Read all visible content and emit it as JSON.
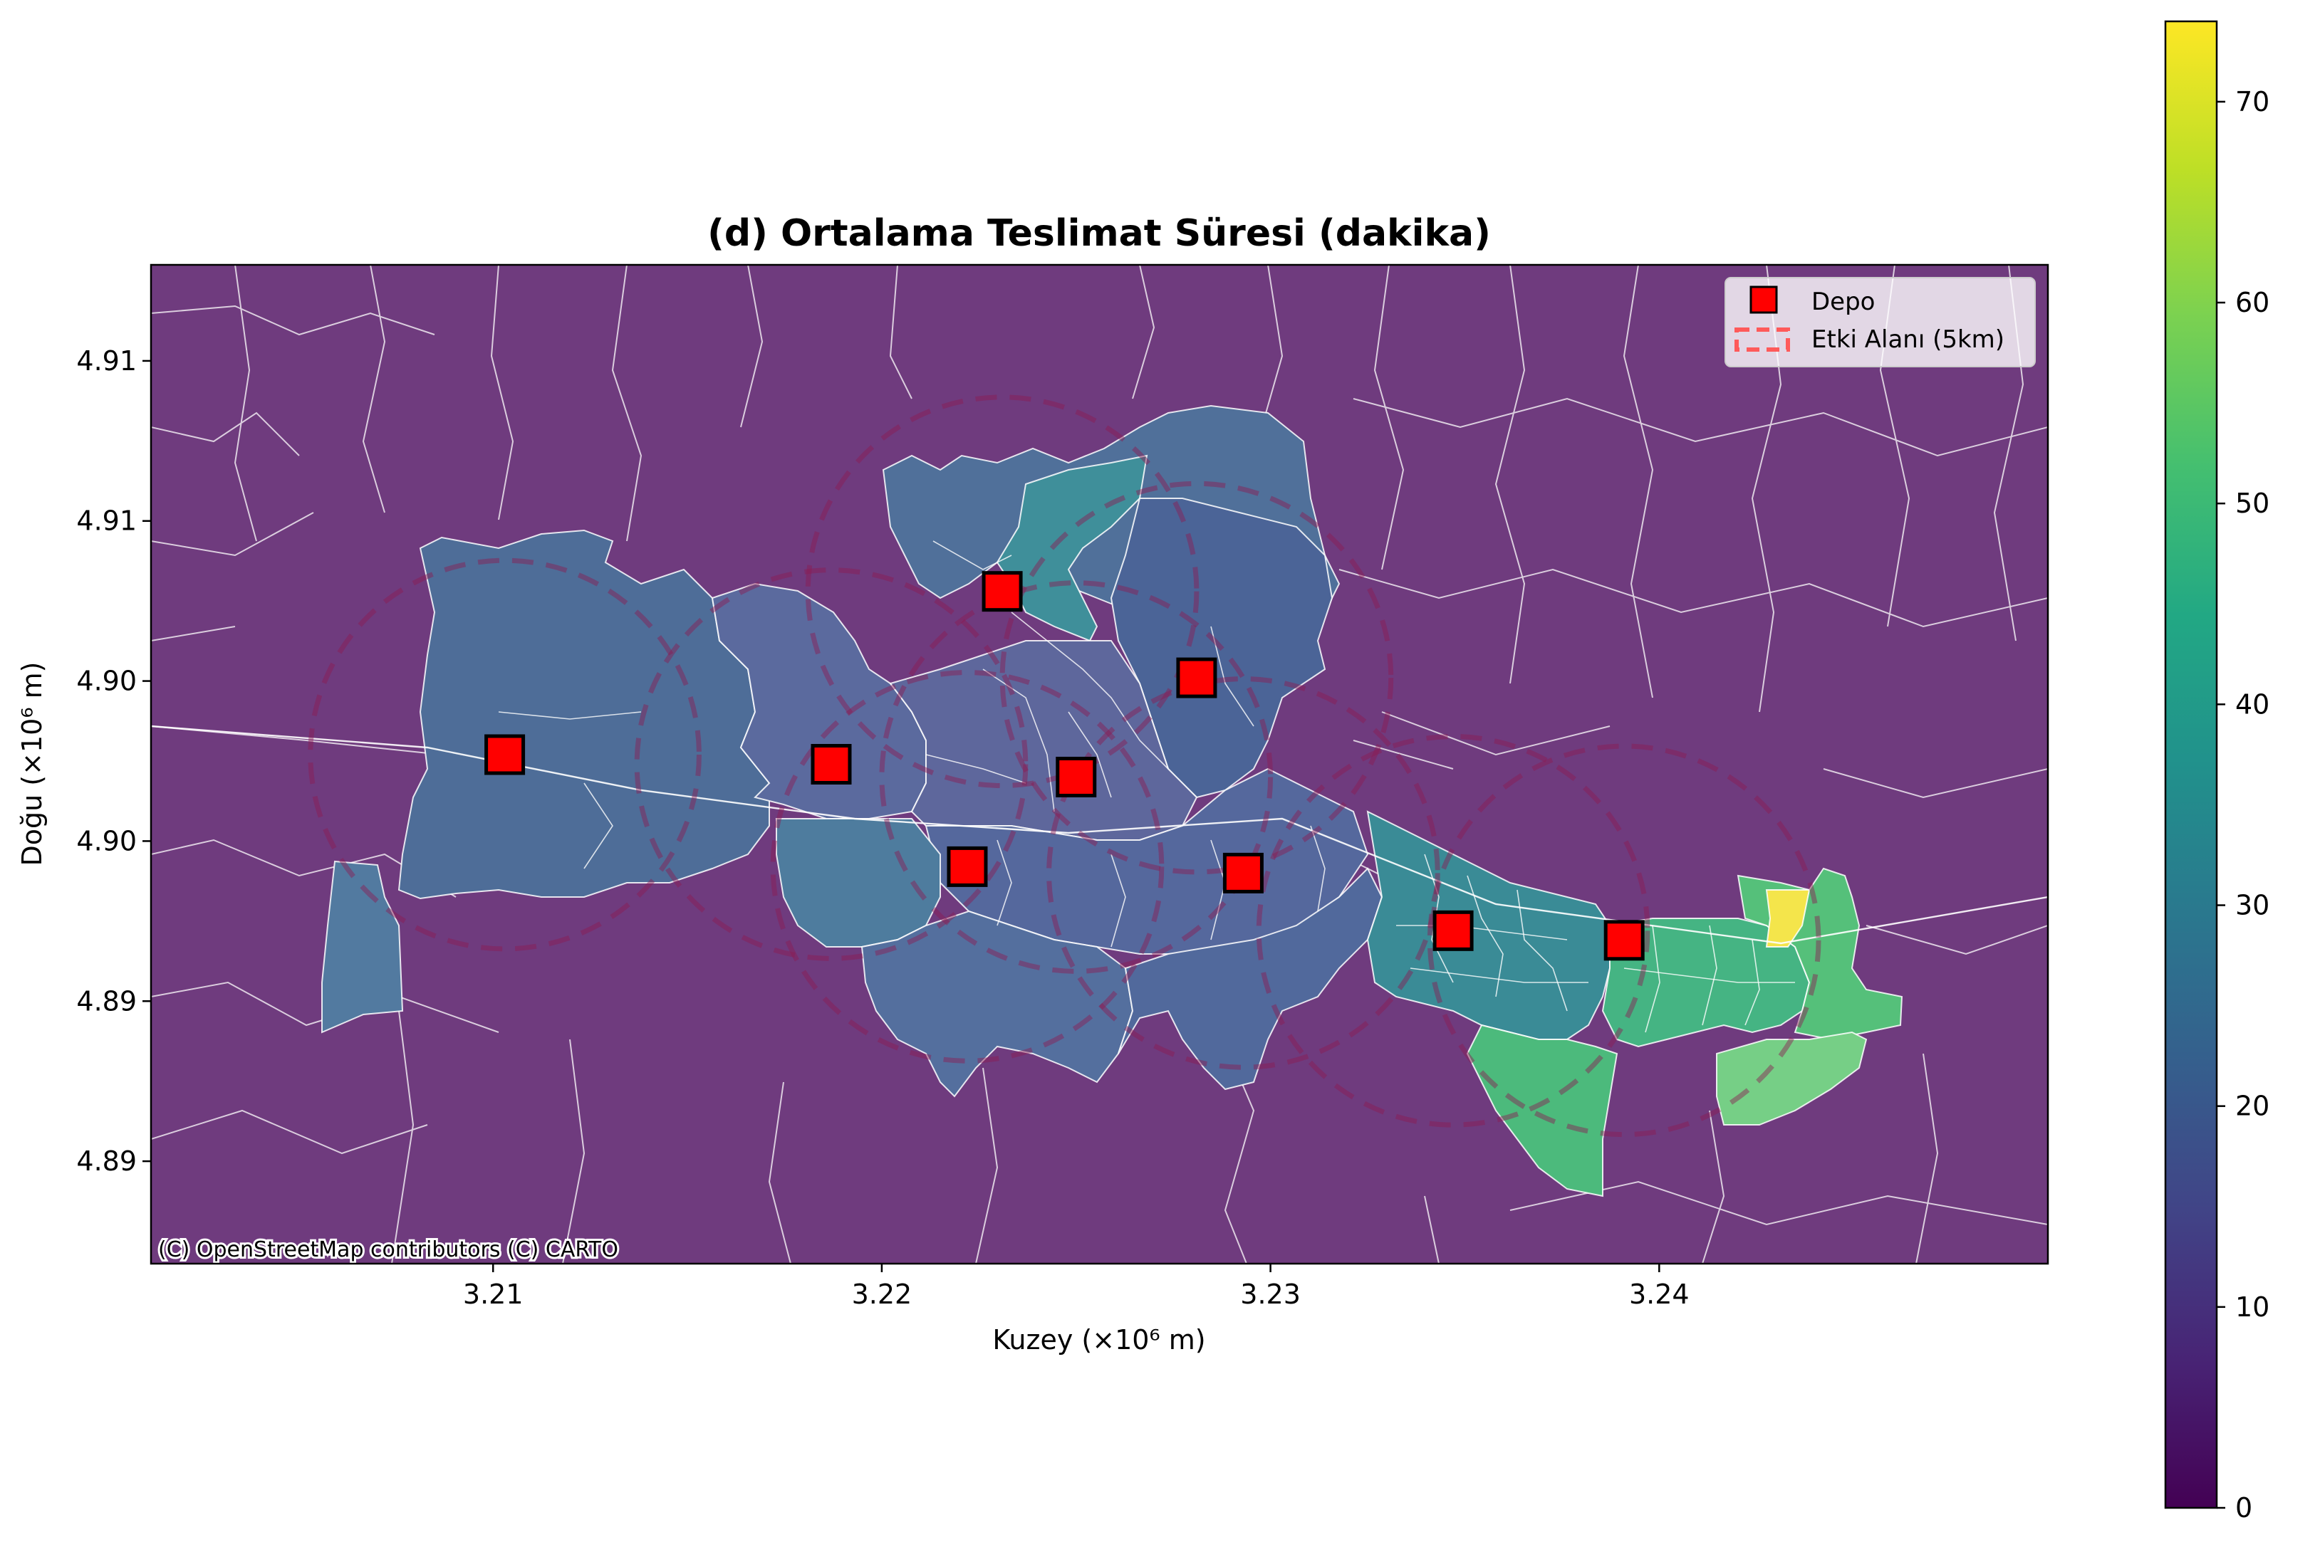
{
  "title": "(d) Ortalama Teslimat Süresi (dakika)",
  "xlabel": "Kuzey (×10⁶ m)",
  "ylabel": "Doğu (×10⁶ m)",
  "attribution": "(C) OpenStreetMap contributors (C) CARTO",
  "legend": {
    "depot_label": "Depo",
    "area_label": "Etki Alanı (5km)"
  },
  "chart_data": {
    "type": "choropleth-map",
    "xlim": [
      3.2012,
      3.25
    ],
    "ylim": [
      4.8806,
      4.9118
    ],
    "x_ticks": [
      {
        "value": 3.21,
        "label": "3.21"
      },
      {
        "value": 3.22,
        "label": "3.22"
      },
      {
        "value": 3.23,
        "label": "3.23"
      },
      {
        "value": 3.24,
        "label": "3.24"
      }
    ],
    "y_ticks": [
      {
        "value": 4.8838,
        "label": "4.89"
      },
      {
        "value": 4.8888,
        "label": "4.89"
      },
      {
        "value": 4.8938,
        "label": "4.90"
      },
      {
        "value": 4.8988,
        "label": "4.90"
      },
      {
        "value": 4.9038,
        "label": "4.91"
      },
      {
        "value": 4.9088,
        "label": "4.91"
      }
    ],
    "colorbar": {
      "colormap": "viridis",
      "range": [
        0,
        74
      ],
      "ticks": [
        0,
        10,
        20,
        30,
        40,
        50,
        60,
        70
      ]
    },
    "depots": [
      {
        "x": 3.2103,
        "y": 4.8965
      },
      {
        "x": 3.2187,
        "y": 4.8962
      },
      {
        "x": 3.2231,
        "y": 4.9016
      },
      {
        "x": 3.2281,
        "y": 4.8989
      },
      {
        "x": 3.225,
        "y": 4.8958
      },
      {
        "x": 3.2222,
        "y": 4.893
      },
      {
        "x": 3.2293,
        "y": 4.8928
      },
      {
        "x": 3.2347,
        "y": 4.891
      },
      {
        "x": 3.2391,
        "y": 4.8907
      }
    ],
    "impact_radius_m": 5000,
    "regions": [
      {
        "name": "west",
        "value": 23
      },
      {
        "name": "west-south-strip",
        "value": 26
      },
      {
        "name": "north-upper",
        "value": 24
      },
      {
        "name": "north-teal",
        "value": 29
      },
      {
        "name": "north-east",
        "value": 21
      },
      {
        "name": "center-west",
        "value": 17
      },
      {
        "name": "center",
        "value": 16
      },
      {
        "name": "center-lower",
        "value": 18
      },
      {
        "name": "south-west-lobe",
        "value": 25
      },
      {
        "name": "south",
        "value": 19
      },
      {
        "name": "south-east",
        "value": 18
      },
      {
        "name": "east-core",
        "value": 33
      },
      {
        "name": "east",
        "value": 48
      },
      {
        "name": "east-south",
        "value": 50
      },
      {
        "name": "far-east",
        "value": 55
      },
      {
        "name": "far-east-south",
        "value": 57
      },
      {
        "name": "hotspot",
        "value": 74
      }
    ]
  },
  "colors": {
    "background_region": "#6f3b7e",
    "boundary": "#ffffff",
    "depot_fill": "#ff0000",
    "circle": "#8b1a52"
  }
}
